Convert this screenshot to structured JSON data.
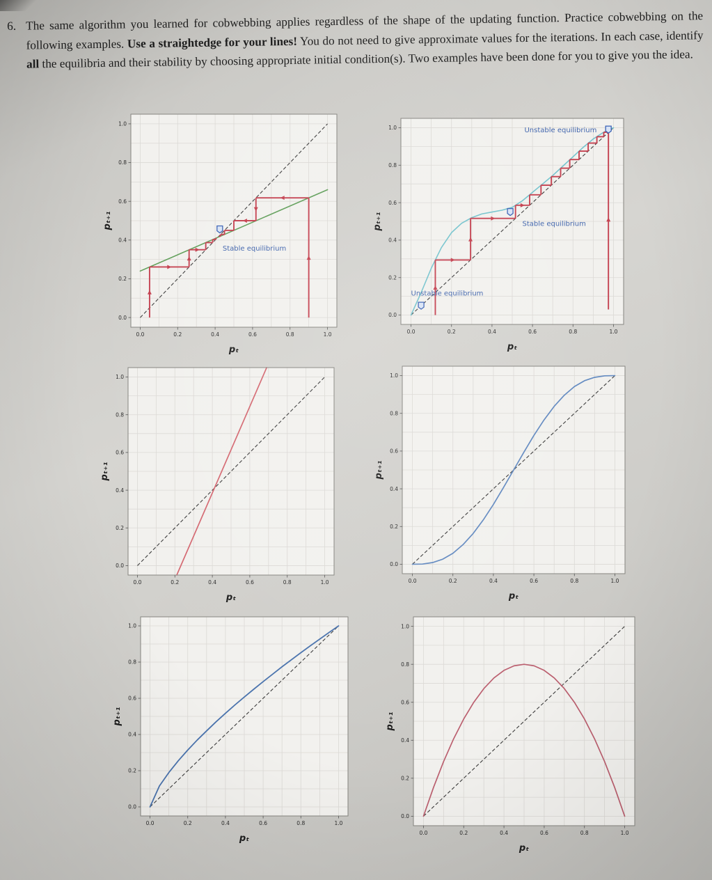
{
  "page": {
    "problem_number": "6.",
    "paragraph_segments": [
      {
        "text": "The same algorithm you learned for cobwebbing applies regardless of the shape of the updating function. Practice cobwebbing on the following examples.  ",
        "bold": false
      },
      {
        "text": "Use a straightedge for your lines!",
        "bold": true
      },
      {
        "text": "  You do not need to give approximate values for the iterations.  In each case, identify ",
        "bold": false
      },
      {
        "text": "all",
        "bold": true
      },
      {
        "text": " the equilibria and their stability by choosing appropriate initial condition(s). Two examples have been done for you to give you the idea.",
        "bold": false
      }
    ]
  },
  "chart_data": [
    {
      "id": "c1",
      "type": "line",
      "title": "",
      "xlabel": "pₜ",
      "ylabel": "pₜ₊₁",
      "xlim": [
        -0.05,
        1.05
      ],
      "ylim": [
        -0.05,
        1.05
      ],
      "tick_labels": [
        "0.0",
        "0.2",
        "0.4",
        "0.6",
        "0.8",
        "1.0"
      ],
      "grid": true,
      "diagonal": true,
      "series": [
        {
          "name": "updating-function-linear",
          "color": "#5f9e58",
          "width": 1.6,
          "points": [
            [
              0,
              0.24
            ],
            [
              1,
              0.66
            ]
          ]
        },
        {
          "name": "cobweb-from-left",
          "color": "#c4404f",
          "width": 1.9,
          "cobweb": true,
          "arrows": true,
          "points": [
            [
              0.05,
              0
            ],
            [
              0.05,
              0.261
            ],
            [
              0.261,
              0.261
            ],
            [
              0.261,
              0.35
            ],
            [
              0.35,
              0.35
            ],
            [
              0.35,
              0.387
            ],
            [
              0.387,
              0.387
            ],
            [
              0.387,
              0.403
            ],
            [
              0.403,
              0.403
            ],
            [
              0.403,
              0.409
            ],
            [
              0.409,
              0.409
            ]
          ]
        },
        {
          "name": "cobweb-from-right",
          "color": "#c4404f",
          "width": 1.9,
          "cobweb": true,
          "arrows": true,
          "points": [
            [
              0.9,
              0
            ],
            [
              0.9,
              0.618
            ],
            [
              0.618,
              0.618
            ],
            [
              0.618,
              0.5
            ],
            [
              0.5,
              0.5
            ],
            [
              0.5,
              0.45
            ],
            [
              0.45,
              0.45
            ],
            [
              0.45,
              0.429
            ],
            [
              0.429,
              0.429
            ],
            [
              0.429,
              0.42
            ],
            [
              0.42,
              0.42
            ]
          ]
        }
      ],
      "markers": [
        {
          "x": 0.425,
          "y": 0.455
        }
      ],
      "annotations": [
        {
          "text": "Stable equilibrium",
          "x": 0.44,
          "y": 0.345,
          "anchor": "start",
          "color": "#4165ad"
        }
      ]
    },
    {
      "id": "c2",
      "type": "line",
      "title": "",
      "xlabel": "pₜ",
      "ylabel": "pₜ₊₁",
      "xlim": [
        -0.05,
        1.05
      ],
      "ylim": [
        -0.05,
        1.05
      ],
      "tick_labels": [
        "0.0",
        "0.2",
        "0.4",
        "0.6",
        "0.8",
        "1.0"
      ],
      "grid": true,
      "diagonal": true,
      "series": [
        {
          "name": "updating-function-sigmoid",
          "color": "#74c3cd",
          "width": 1.6,
          "points": [
            [
              0,
              0
            ],
            [
              0.05,
              0.12
            ],
            [
              0.1,
              0.25
            ],
            [
              0.15,
              0.36
            ],
            [
              0.2,
              0.44
            ],
            [
              0.25,
              0.49
            ],
            [
              0.3,
              0.52
            ],
            [
              0.35,
              0.54
            ],
            [
              0.4,
              0.55
            ],
            [
              0.45,
              0.56
            ],
            [
              0.5,
              0.575
            ],
            [
              0.55,
              0.61
            ],
            [
              0.6,
              0.655
            ],
            [
              0.65,
              0.7
            ],
            [
              0.7,
              0.745
            ],
            [
              0.75,
              0.795
            ],
            [
              0.8,
              0.845
            ],
            [
              0.85,
              0.895
            ],
            [
              0.9,
              0.94
            ],
            [
              0.95,
              0.975
            ],
            [
              1,
              1
            ]
          ]
        },
        {
          "name": "cobweb-staircase",
          "color": "#c4404f",
          "width": 1.9,
          "cobweb": true,
          "arrows": true,
          "points": [
            [
              0.12,
              0
            ],
            [
              0.12,
              0.294
            ],
            [
              0.294,
              0.294
            ],
            [
              0.294,
              0.516
            ],
            [
              0.516,
              0.516
            ],
            [
              0.516,
              0.586
            ],
            [
              0.586,
              0.586
            ],
            [
              0.586,
              0.642
            ],
            [
              0.642,
              0.642
            ],
            [
              0.642,
              0.693
            ],
            [
              0.693,
              0.693
            ],
            [
              0.693,
              0.739
            ],
            [
              0.739,
              0.739
            ],
            [
              0.739,
              0.784
            ],
            [
              0.784,
              0.784
            ],
            [
              0.784,
              0.83
            ],
            [
              0.83,
              0.83
            ],
            [
              0.83,
              0.875
            ],
            [
              0.875,
              0.875
            ],
            [
              0.875,
              0.918
            ],
            [
              0.918,
              0.918
            ],
            [
              0.918,
              0.952
            ],
            [
              0.952,
              0.952
            ],
            [
              0.952,
              0.976
            ],
            [
              0.976,
              0.976
            ]
          ]
        },
        {
          "name": "cobweb-vertical-right",
          "color": "#c4404f",
          "width": 1.9,
          "cobweb": true,
          "arrows": true,
          "points": [
            [
              0.975,
              0.03
            ],
            [
              0.975,
              0.99
            ]
          ]
        }
      ],
      "markers": [
        {
          "x": 0.975,
          "y": 0.99
        },
        {
          "x": 0.49,
          "y": 0.55
        },
        {
          "x": 0.05,
          "y": 0.05
        }
      ],
      "annotations": [
        {
          "text": "Unstable equilibrium",
          "x": 0.56,
          "y": 0.975,
          "anchor": "start",
          "color": "#4165ad"
        },
        {
          "text": "Stable equilibrium",
          "x": 0.55,
          "y": 0.475,
          "anchor": "start",
          "color": "#4165ad"
        },
        {
          "text": "Unstable equilibrium",
          "x": 0.0,
          "y": 0.105,
          "anchor": "start",
          "color": "#4165ad"
        }
      ]
    },
    {
      "id": "c3",
      "type": "line",
      "title": "",
      "xlabel": "pₜ",
      "ylabel": "pₜ₊₁",
      "xlim": [
        -0.05,
        1.05
      ],
      "ylim": [
        -0.05,
        1.05
      ],
      "tick_labels": [
        "0.0",
        "0.2",
        "0.4",
        "0.6",
        "0.8",
        "1.0"
      ],
      "grid": true,
      "diagonal": true,
      "series": [
        {
          "name": "updating-function-steep-line",
          "color": "#d46770",
          "width": 1.7,
          "points": [
            [
              0.21,
              -0.05
            ],
            [
              0.69,
              1.05
            ]
          ]
        }
      ],
      "markers": [],
      "annotations": []
    },
    {
      "id": "c4",
      "type": "line",
      "title": "",
      "xlabel": "pₜ",
      "ylabel": "pₜ₊₁",
      "xlim": [
        -0.05,
        1.05
      ],
      "ylim": [
        -0.05,
        1.05
      ],
      "tick_labels": [
        "0.0",
        "0.2",
        "0.4",
        "0.6",
        "0.8",
        "1.0"
      ],
      "grid": true,
      "diagonal": true,
      "series": [
        {
          "name": "updating-function-s-curve",
          "color": "#6189c0",
          "width": 1.7,
          "points": [
            [
              0,
              0
            ],
            [
              0.05,
              0.001
            ],
            [
              0.1,
              0.009
            ],
            [
              0.15,
              0.027
            ],
            [
              0.2,
              0.058
            ],
            [
              0.25,
              0.104
            ],
            [
              0.3,
              0.163
            ],
            [
              0.35,
              0.235
            ],
            [
              0.4,
              0.317
            ],
            [
              0.45,
              0.407
            ],
            [
              0.5,
              0.5
            ],
            [
              0.55,
              0.593
            ],
            [
              0.6,
              0.683
            ],
            [
              0.65,
              0.765
            ],
            [
              0.7,
              0.837
            ],
            [
              0.75,
              0.896
            ],
            [
              0.8,
              0.942
            ],
            [
              0.85,
              0.973
            ],
            [
              0.9,
              0.991
            ],
            [
              0.95,
              0.999
            ],
            [
              1,
              1
            ]
          ]
        }
      ],
      "markers": [],
      "annotations": []
    },
    {
      "id": "c5",
      "type": "line",
      "title": "",
      "xlabel": "pₜ",
      "ylabel": "pₜ₊₁",
      "xlim": [
        -0.05,
        1.05
      ],
      "ylim": [
        -0.05,
        1.05
      ],
      "tick_labels": [
        "0.0",
        "0.2",
        "0.4",
        "0.6",
        "0.8",
        "1.0"
      ],
      "grid": true,
      "diagonal": true,
      "series": [
        {
          "name": "updating-function-concave",
          "color": "#4a73ad",
          "width": 1.8,
          "points": [
            [
              0,
              0
            ],
            [
              0.05,
              0.116
            ],
            [
              0.1,
              0.19
            ],
            [
              0.15,
              0.255
            ],
            [
              0.2,
              0.314
            ],
            [
              0.25,
              0.369
            ],
            [
              0.3,
              0.42
            ],
            [
              0.35,
              0.47
            ],
            [
              0.4,
              0.517
            ],
            [
              0.45,
              0.563
            ],
            [
              0.5,
              0.607
            ],
            [
              0.55,
              0.65
            ],
            [
              0.6,
              0.692
            ],
            [
              0.65,
              0.733
            ],
            [
              0.7,
              0.774
            ],
            [
              0.75,
              0.813
            ],
            [
              0.8,
              0.852
            ],
            [
              0.85,
              0.89
            ],
            [
              0.9,
              0.927
            ],
            [
              0.95,
              0.964
            ],
            [
              1,
              1
            ]
          ]
        }
      ],
      "markers": [],
      "annotations": []
    },
    {
      "id": "c6",
      "type": "line",
      "title": "",
      "xlabel": "pₜ",
      "ylabel": "pₜ₊₁",
      "xlim": [
        -0.05,
        1.05
      ],
      "ylim": [
        -0.05,
        1.05
      ],
      "tick_labels": [
        "0.0",
        "0.2",
        "0.4",
        "0.6",
        "0.8",
        "1.0"
      ],
      "grid": true,
      "diagonal": true,
      "series": [
        {
          "name": "updating-function-parabola",
          "color": "#bb5f6f",
          "width": 1.7,
          "points": [
            [
              0,
              0
            ],
            [
              0.05,
              0.152
            ],
            [
              0.1,
              0.288
            ],
            [
              0.15,
              0.408
            ],
            [
              0.2,
              0.512
            ],
            [
              0.25,
              0.6
            ],
            [
              0.3,
              0.672
            ],
            [
              0.35,
              0.728
            ],
            [
              0.4,
              0.768
            ],
            [
              0.45,
              0.792
            ],
            [
              0.5,
              0.8
            ],
            [
              0.55,
              0.792
            ],
            [
              0.6,
              0.768
            ],
            [
              0.65,
              0.728
            ],
            [
              0.7,
              0.672
            ],
            [
              0.75,
              0.6
            ],
            [
              0.8,
              0.512
            ],
            [
              0.85,
              0.408
            ],
            [
              0.9,
              0.288
            ],
            [
              0.95,
              0.152
            ],
            [
              1,
              0
            ]
          ]
        }
      ],
      "markers": [],
      "annotations": []
    }
  ],
  "style": {
    "cobweb_red": "#c4404f",
    "annotation_blue": "#4165ad",
    "diagonal_color": "#3a3a3a",
    "plot_bg": "#f2f1ee",
    "grid_color": "#dbd9d5",
    "spine_color": "#85847f"
  }
}
